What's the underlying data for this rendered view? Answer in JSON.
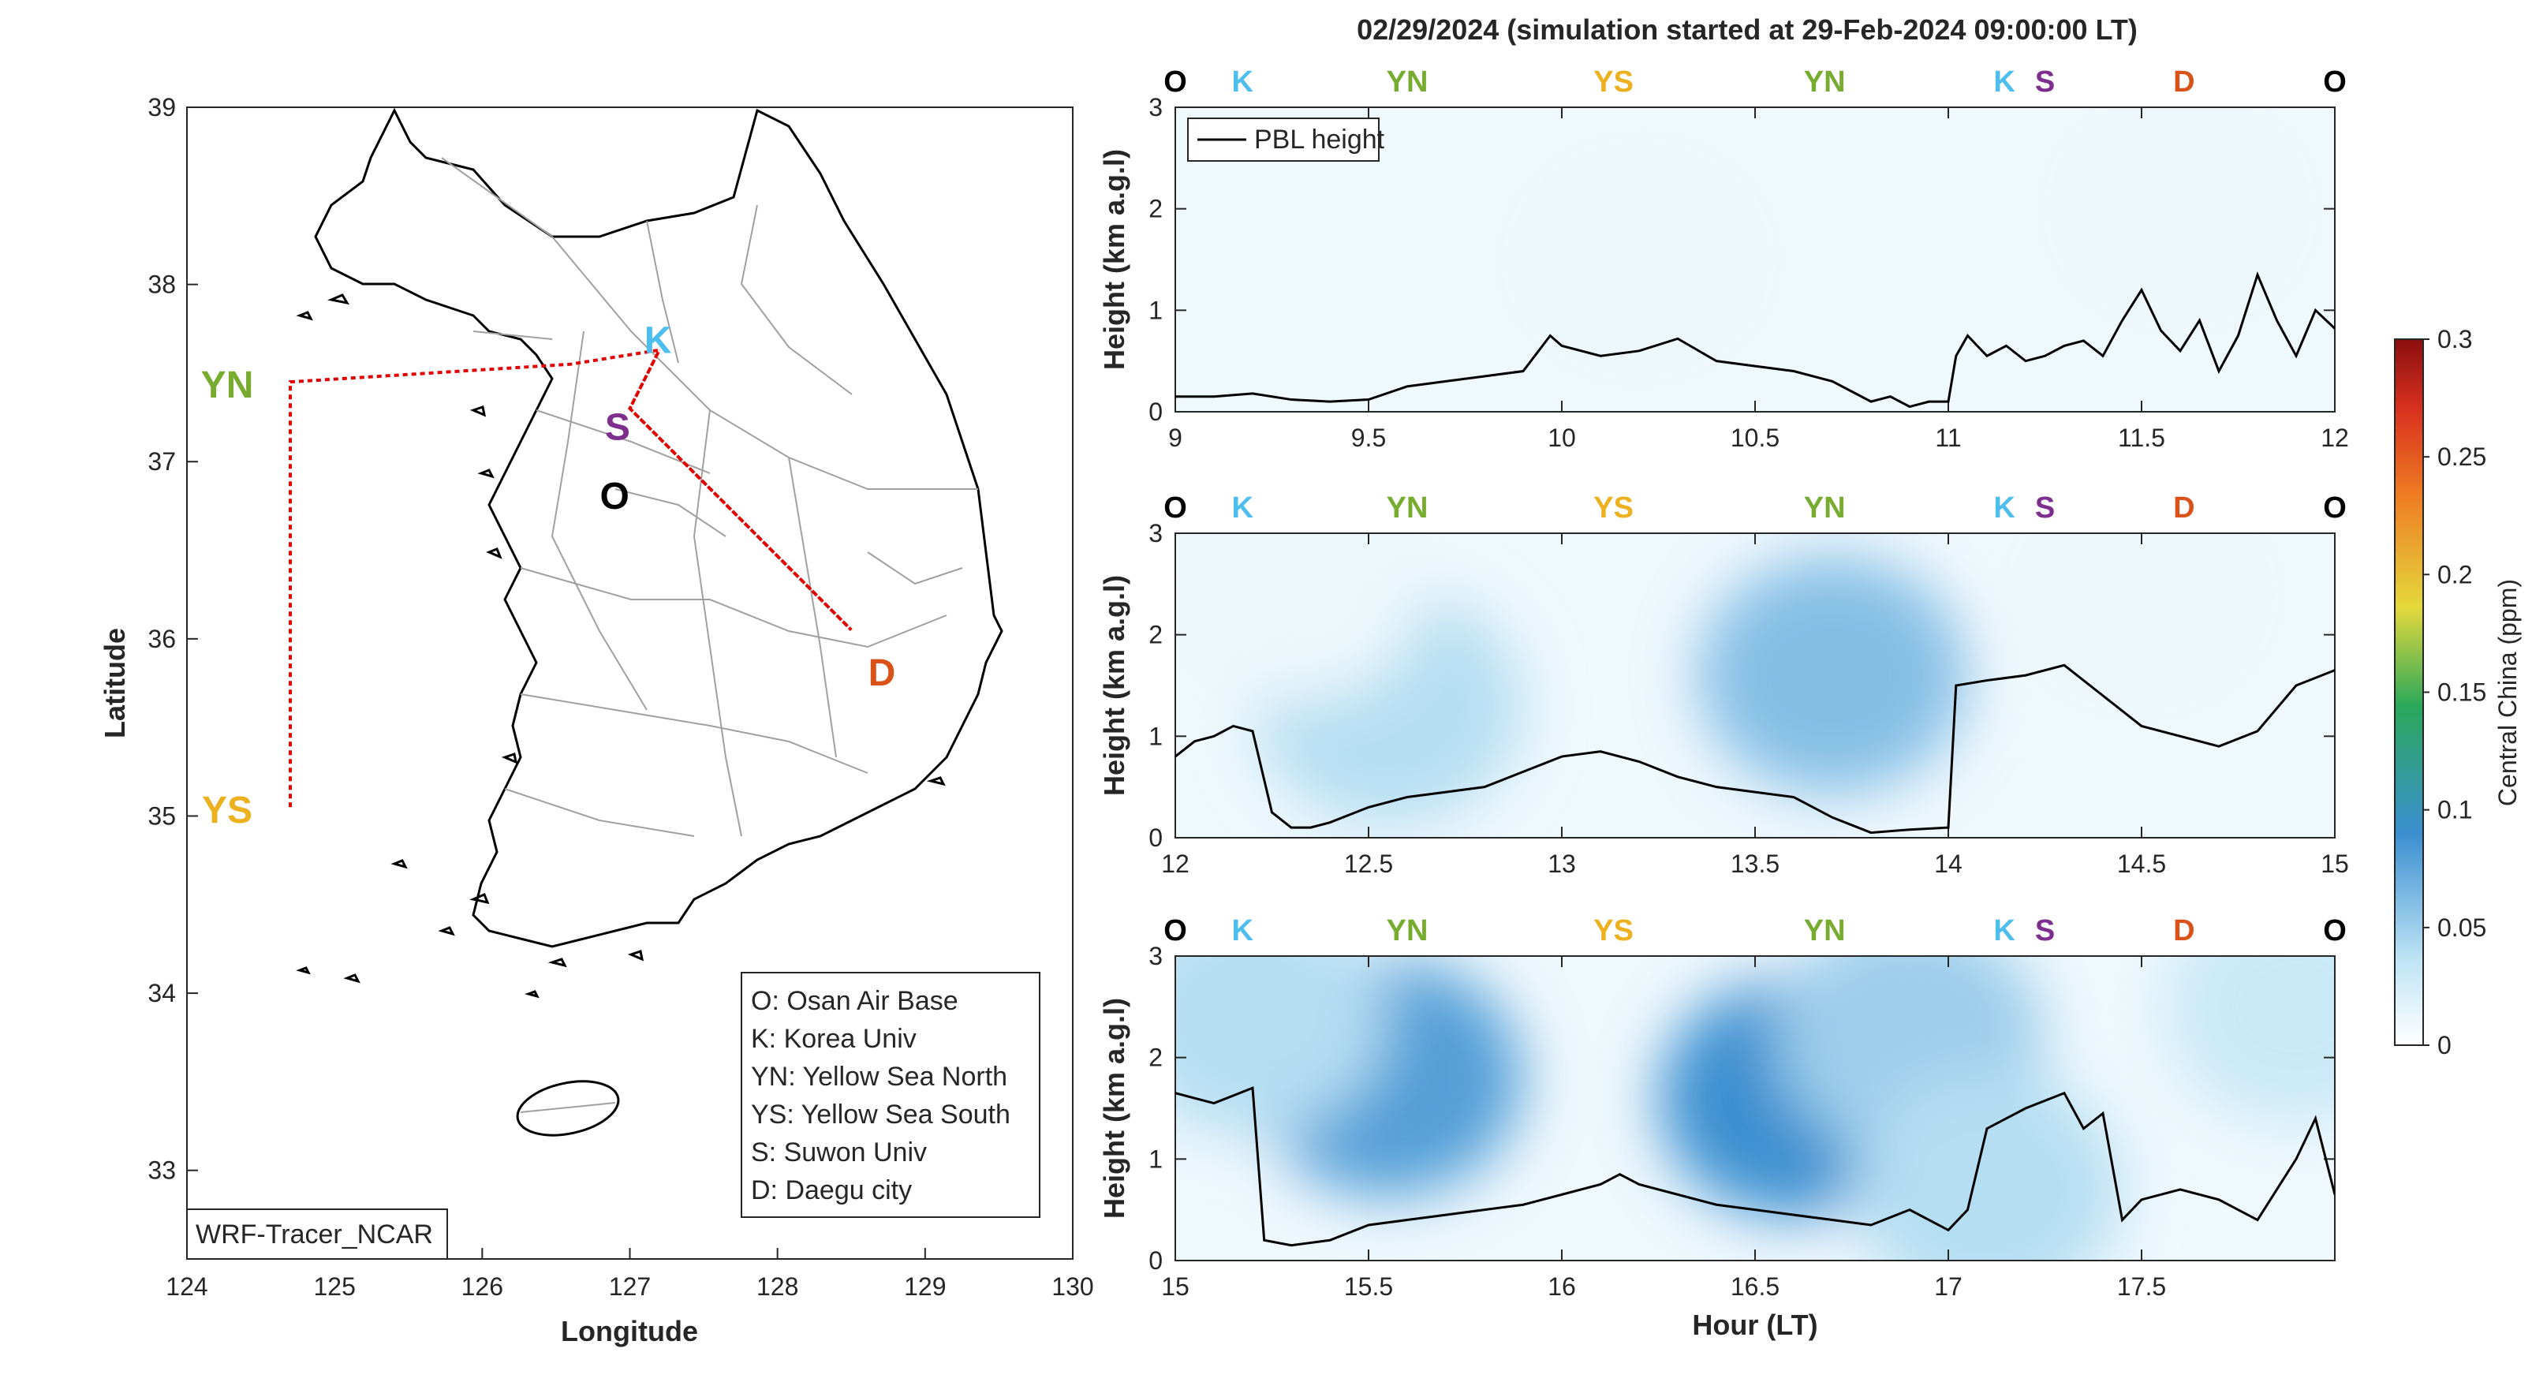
{
  "title": "02/29/2024 (simulation started at 29-Feb-2024 09:00:00 LT)",
  "map": {
    "xlabel": "Longitude",
    "ylabel": "Latitude",
    "xlim": [
      124,
      130
    ],
    "ylim": [
      32.5,
      39
    ],
    "xticks": [
      "124",
      "125",
      "126",
      "127",
      "128",
      "129",
      "130"
    ],
    "yticks": [
      "33",
      "34",
      "35",
      "36",
      "37",
      "38",
      "39"
    ],
    "watermark": "WRF-Tracer_NCAR",
    "legend": [
      "O: Osan Air Base",
      "K: Korea Univ",
      "YN: Yellow Sea North",
      "YS: Yellow Sea South",
      "S: Suwon Univ",
      "D: Daegu city"
    ],
    "sites": [
      {
        "id": "K",
        "label": "K",
        "lon": 127.03,
        "lat": 37.59,
        "color": "#4DBEEE"
      },
      {
        "id": "S",
        "label": "S",
        "lon": 126.97,
        "lat": 37.28,
        "color": "#7E2F8E"
      },
      {
        "id": "O",
        "label": "O",
        "lon": 127.03,
        "lat": 37.09,
        "color": "#000000"
      },
      {
        "id": "D",
        "label": "D",
        "lon": 128.6,
        "lat": 35.87,
        "color": "#D95319"
      },
      {
        "id": "YN",
        "label": "YN",
        "lon": 124.7,
        "lat": 37.45,
        "color": "#77AC30"
      },
      {
        "id": "YS",
        "label": "YS",
        "lon": 124.7,
        "lat": 35.05,
        "color": "#EDB120"
      }
    ],
    "route": [
      [
        124.7,
        35.05
      ],
      [
        124.7,
        37.45
      ],
      [
        126.6,
        37.55
      ],
      [
        127.2,
        37.63
      ],
      [
        127.0,
        37.3
      ],
      [
        128.5,
        36.05
      ],
      [
        127.0,
        37.3
      ],
      [
        127.2,
        37.63
      ]
    ]
  },
  "colorbar": {
    "label": "Central China (ppm)",
    "ticks": [
      "0",
      "0.05",
      "0.1",
      "0.15",
      "0.2",
      "0.25",
      "0.3"
    ],
    "range": [
      0,
      0.3
    ]
  },
  "chart_data": [
    {
      "type": "line",
      "series": [
        {
          "name": "PBL height",
          "x": [
            9.0,
            9.1,
            9.2,
            9.3,
            9.4,
            9.5,
            9.6,
            9.7,
            9.8,
            9.9,
            9.97,
            10.0,
            10.1,
            10.2,
            10.3,
            10.4,
            10.5,
            10.6,
            10.7,
            10.8,
            10.85,
            10.9,
            10.95,
            11.0,
            11.02,
            11.05,
            11.1,
            11.15,
            11.2,
            11.25,
            11.3,
            11.35,
            11.4,
            11.45,
            11.5,
            11.55,
            11.6,
            11.65,
            11.7,
            11.75,
            11.8,
            11.85,
            11.9,
            11.95,
            12.0
          ],
          "y": [
            0.15,
            0.15,
            0.18,
            0.12,
            0.1,
            0.12,
            0.25,
            0.3,
            0.35,
            0.4,
            0.75,
            0.65,
            0.55,
            0.6,
            0.72,
            0.5,
            0.45,
            0.4,
            0.3,
            0.1,
            0.15,
            0.05,
            0.1,
            0.1,
            0.55,
            0.75,
            0.55,
            0.65,
            0.5,
            0.55,
            0.65,
            0.7,
            0.55,
            0.9,
            1.2,
            0.8,
            0.6,
            0.9,
            0.4,
            0.75,
            1.35,
            0.9,
            0.55,
            1.0,
            0.82
          ]
        }
      ],
      "xlabel": "",
      "ylabel": "Height (km a.g.l)",
      "xlim": [
        9,
        12
      ],
      "ylim": [
        0,
        3
      ],
      "xticks": [
        "9",
        "9.5",
        "10",
        "10.5",
        "11",
        "11.5",
        "12"
      ],
      "yticks": [
        "0",
        "1",
        "2",
        "3"
      ],
      "legend": "top-left"
    },
    {
      "type": "line",
      "series": [
        {
          "name": "PBL height",
          "x": [
            12.0,
            12.05,
            12.1,
            12.15,
            12.2,
            12.25,
            12.3,
            12.35,
            12.4,
            12.5,
            12.6,
            12.7,
            12.8,
            12.9,
            13.0,
            13.1,
            13.2,
            13.3,
            13.4,
            13.5,
            13.6,
            13.7,
            13.8,
            13.9,
            14.0,
            14.02,
            14.1,
            14.2,
            14.3,
            14.4,
            14.5,
            14.6,
            14.7,
            14.8,
            14.9,
            15.0
          ],
          "y": [
            0.8,
            0.95,
            1.0,
            1.1,
            1.05,
            0.25,
            0.1,
            0.1,
            0.15,
            0.3,
            0.4,
            0.45,
            0.5,
            0.65,
            0.8,
            0.85,
            0.75,
            0.6,
            0.5,
            0.45,
            0.4,
            0.2,
            0.05,
            0.08,
            0.1,
            1.5,
            1.55,
            1.6,
            1.7,
            1.4,
            1.1,
            1.0,
            0.9,
            1.05,
            1.5,
            1.65
          ]
        }
      ],
      "xlabel": "",
      "ylabel": "Height (km a.g.l)",
      "xlim": [
        12,
        15
      ],
      "ylim": [
        0,
        3
      ],
      "xticks": [
        "12",
        "12.5",
        "13",
        "13.5",
        "14",
        "14.5",
        "15"
      ],
      "yticks": [
        "0",
        "1",
        "2",
        "3"
      ]
    },
    {
      "type": "line",
      "series": [
        {
          "name": "PBL height",
          "x": [
            15.0,
            15.1,
            15.2,
            15.23,
            15.3,
            15.4,
            15.5,
            15.6,
            15.7,
            15.8,
            15.9,
            16.0,
            16.1,
            16.15,
            16.2,
            16.3,
            16.4,
            16.5,
            16.6,
            16.7,
            16.8,
            16.9,
            17.0,
            17.05,
            17.1,
            17.2,
            17.3,
            17.35,
            17.4,
            17.45,
            17.5,
            17.6,
            17.7,
            17.8,
            17.85,
            17.9,
            17.95,
            18.0
          ],
          "y": [
            1.65,
            1.55,
            1.7,
            0.2,
            0.15,
            0.2,
            0.35,
            0.4,
            0.45,
            0.5,
            0.55,
            0.65,
            0.75,
            0.85,
            0.75,
            0.65,
            0.55,
            0.5,
            0.45,
            0.4,
            0.35,
            0.5,
            0.3,
            0.5,
            1.3,
            1.5,
            1.65,
            1.3,
            1.45,
            0.4,
            0.6,
            0.7,
            0.6,
            0.4,
            0.7,
            1.0,
            1.4,
            0.65
          ]
        }
      ],
      "xlabel": "Hour (LT)",
      "ylabel": "Height (km a.g.l)",
      "xlim": [
        15,
        18
      ],
      "ylim": [
        0,
        3
      ],
      "xticks": [
        "15",
        "15.5",
        "16",
        "16.5",
        "17",
        "17.5"
      ],
      "yticks": [
        "0",
        "1",
        "2",
        "3"
      ]
    }
  ],
  "route_markers": [
    {
      "label": "O",
      "color": "#000000",
      "x": 0.0
    },
    {
      "label": "K",
      "color": "#4DBEEE",
      "x": 0.058
    },
    {
      "label": "YN",
      "color": "#77AC30",
      "x": 0.2
    },
    {
      "label": "YS",
      "color": "#EDB120",
      "x": 0.378
    },
    {
      "label": "YN",
      "color": "#77AC30",
      "x": 0.56
    },
    {
      "label": "K",
      "color": "#4DBEEE",
      "x": 0.715
    },
    {
      "label": "S",
      "color": "#7E2F8E",
      "x": 0.75
    },
    {
      "label": "D",
      "color": "#D95319",
      "x": 0.87
    },
    {
      "label": "O",
      "color": "#000000",
      "x": 1.0
    }
  ],
  "plumes": [
    [
      {
        "x": 10.2,
        "y": 1.5,
        "level": 0.01
      },
      {
        "x": 11.6,
        "y": 2.0,
        "level": 0.01
      }
    ],
    [
      {
        "x": 12.55,
        "y": 1.3,
        "level": 0.04
      },
      {
        "x": 13.7,
        "y": 1.6,
        "level": 0.06
      },
      {
        "x": 12.3,
        "y": 2.5,
        "level": 0.01
      },
      {
        "x": 14.5,
        "y": 2.4,
        "level": 0.01
      }
    ],
    [
      {
        "x": 15.55,
        "y": 1.8,
        "level": 0.08
      },
      {
        "x": 15.2,
        "y": 2.4,
        "level": 0.04
      },
      {
        "x": 16.6,
        "y": 1.6,
        "level": 0.09
      },
      {
        "x": 16.9,
        "y": 2.2,
        "level": 0.05
      },
      {
        "x": 17.1,
        "y": 0.7,
        "level": 0.04
      },
      {
        "x": 17.9,
        "y": 2.5,
        "level": 0.03
      }
    ]
  ]
}
